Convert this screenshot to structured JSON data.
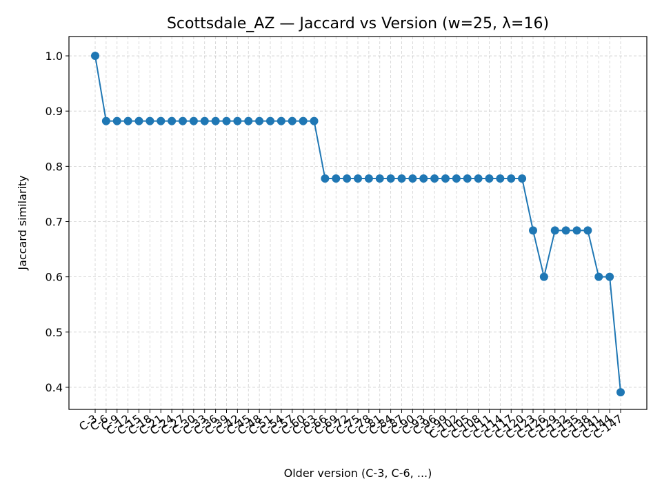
{
  "chart_data": {
    "type": "line",
    "title": "Scottsdale_AZ — Jaccard vs Version (w=25, λ=16)",
    "xlabel": "Older version (C-3, C-6, ...)",
    "ylabel": "Jaccard similarity",
    "ylim": [
      0.36,
      1.035
    ],
    "yticks": [
      0.4,
      0.5,
      0.6,
      0.7,
      0.8,
      0.9,
      1.0
    ],
    "grid": true,
    "color": "#1f77b4",
    "categories": [
      "C-3",
      "C-6",
      "C-9",
      "C-12",
      "C-15",
      "C-18",
      "C-21",
      "C-24",
      "C-27",
      "C-30",
      "C-33",
      "C-36",
      "C-39",
      "C-42",
      "C-45",
      "C-48",
      "C-51",
      "C-54",
      "C-57",
      "C-60",
      "C-63",
      "C-66",
      "C-69",
      "C-72",
      "C-75",
      "C-78",
      "C-81",
      "C-84",
      "C-87",
      "C-90",
      "C-93",
      "C-96",
      "C-99",
      "C-102",
      "C-105",
      "C-108",
      "C-111",
      "C-114",
      "C-117",
      "C-120",
      "C-123",
      "C-126",
      "C-129",
      "C-132",
      "C-135",
      "C-138",
      "C-141",
      "C-144",
      "C-147"
    ],
    "values": [
      1.0,
      0.882,
      0.882,
      0.882,
      0.882,
      0.882,
      0.882,
      0.882,
      0.882,
      0.882,
      0.882,
      0.882,
      0.882,
      0.882,
      0.882,
      0.882,
      0.882,
      0.882,
      0.882,
      0.882,
      0.882,
      0.778,
      0.778,
      0.778,
      0.778,
      0.778,
      0.778,
      0.778,
      0.778,
      0.778,
      0.778,
      0.778,
      0.778,
      0.778,
      0.778,
      0.778,
      0.778,
      0.778,
      0.778,
      0.778,
      0.684,
      0.6,
      0.684,
      0.684,
      0.684,
      0.684,
      0.6,
      0.6,
      0.391
    ]
  }
}
